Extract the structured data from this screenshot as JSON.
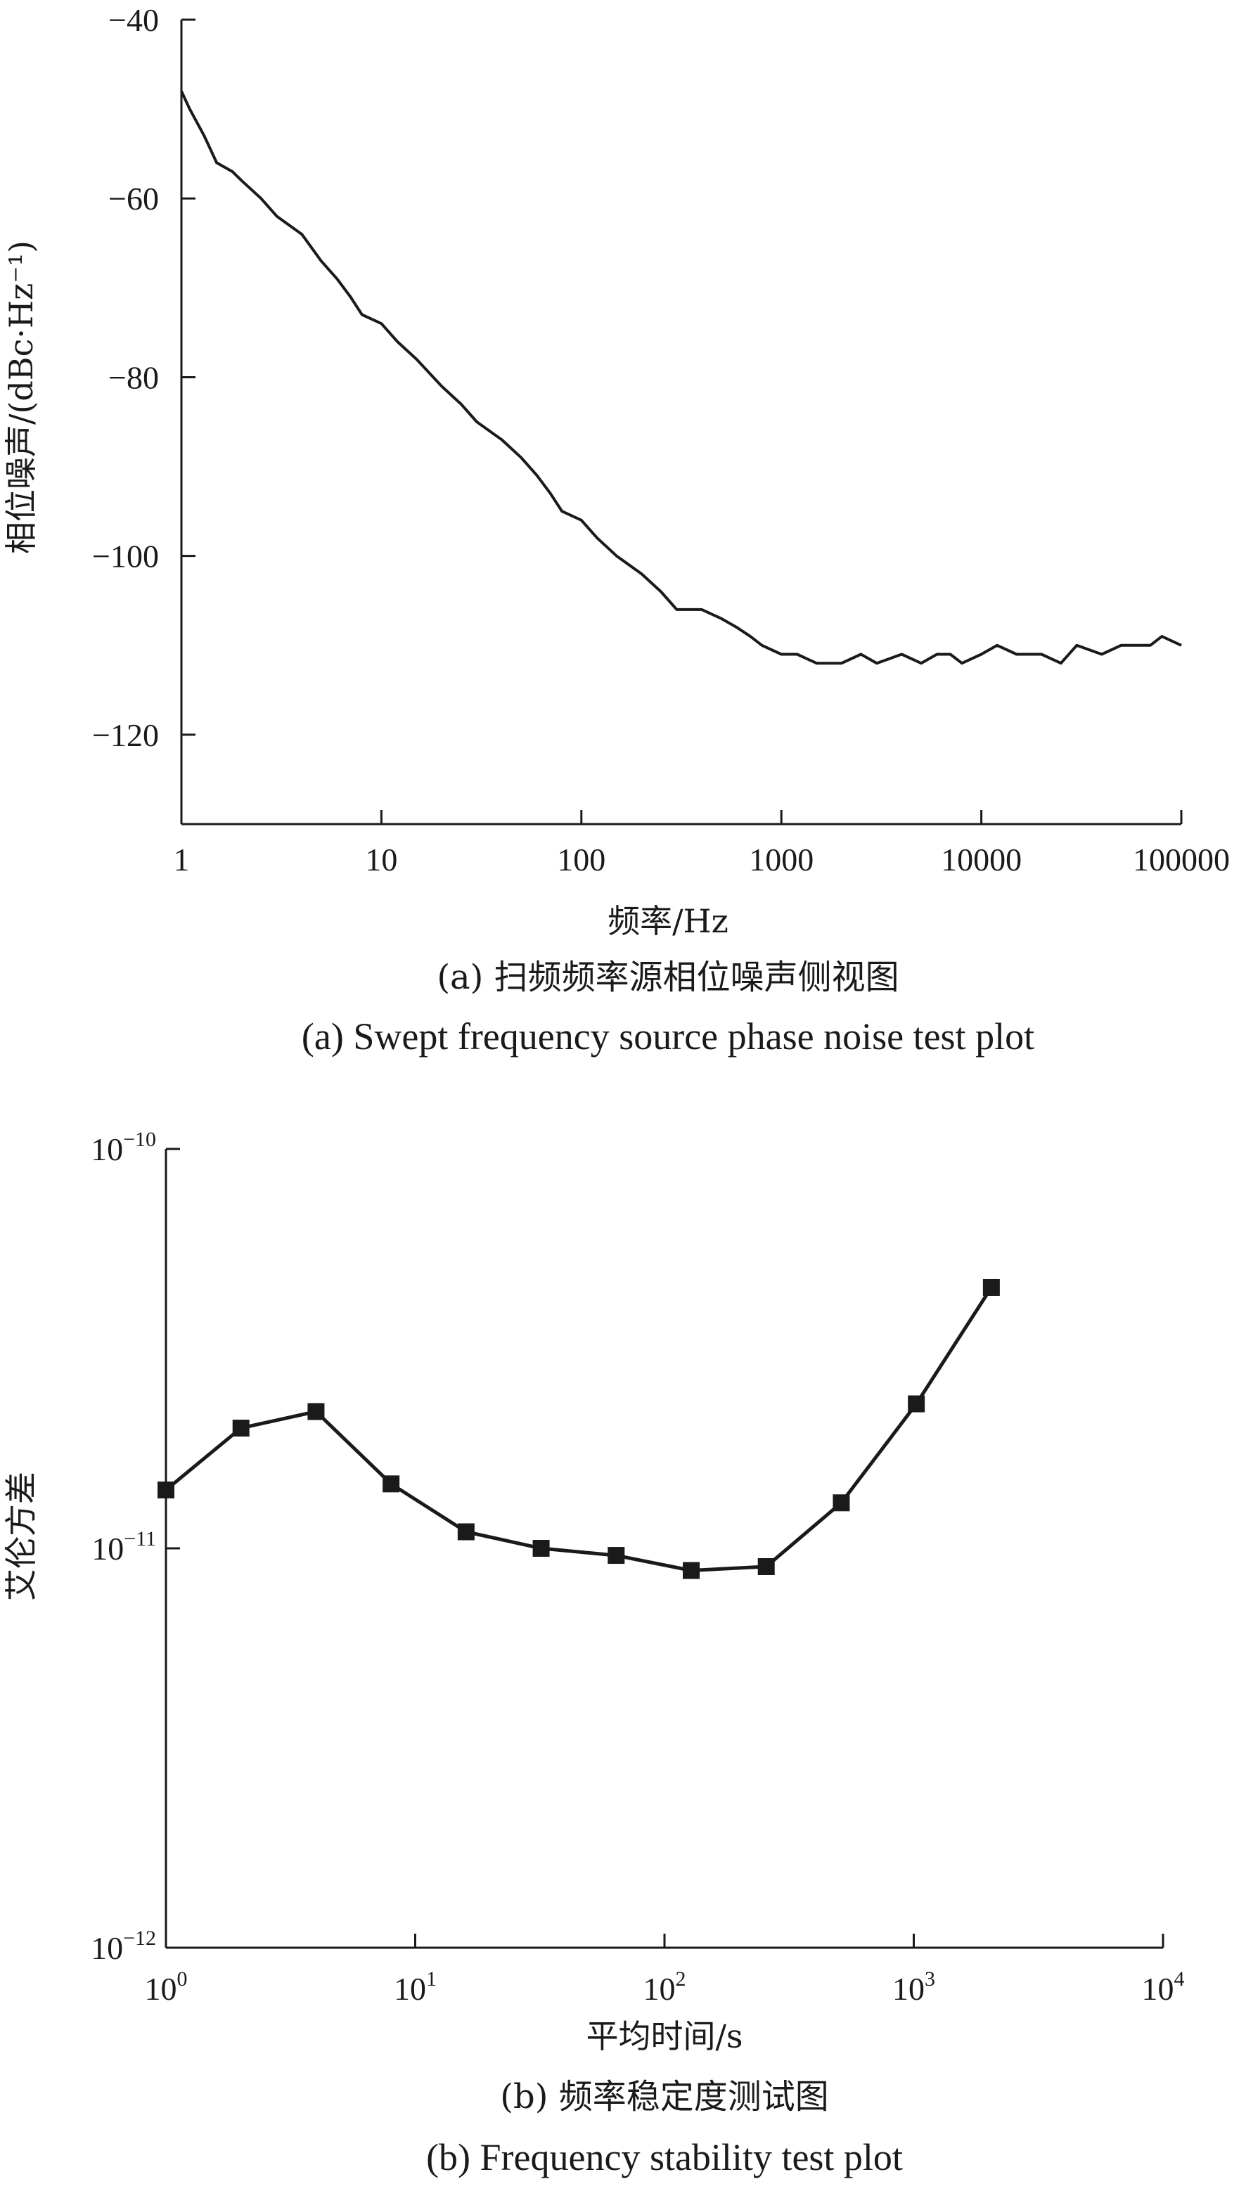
{
  "chart_data": [
    {
      "type": "line",
      "xlabel": "频率/Hz",
      "ylabel": "相位噪声/(dBc·Hz⁻¹)",
      "x_scale": "log",
      "xlim": [
        1,
        100000
      ],
      "ylim": [
        -130,
        -40
      ],
      "x_ticks": [
        1,
        10,
        100,
        1000,
        10000,
        100000
      ],
      "x_tick_labels": [
        "1",
        "10",
        "100",
        "1000",
        "10000",
        "100000"
      ],
      "y_ticks": [
        -40,
        -60,
        -80,
        -100,
        -120
      ],
      "y_tick_labels": [
        "−40",
        "−60",
        "−80",
        "−100",
        "−120"
      ],
      "grid": false,
      "line_color": "#1a1a1a",
      "series": [
        {
          "x": [
            1,
            1.1,
            1.3,
            1.5,
            1.8,
            2,
            2.5,
            3,
            4,
            5,
            6,
            7,
            8,
            10,
            12,
            15,
            20,
            25,
            30,
            40,
            50,
            60,
            70,
            80,
            100,
            120,
            150,
            200,
            250,
            300,
            400,
            500,
            600,
            700,
            800,
            1000,
            1200,
            1500,
            2000,
            2500,
            3000,
            4000,
            5000,
            6000,
            7000,
            8000,
            10000,
            12000,
            15000,
            20000,
            25000,
            30000,
            40000,
            50000,
            60000,
            70000,
            80000,
            100000
          ],
          "values": [
            -48,
            -50,
            -53,
            -56,
            -57,
            -58,
            -60,
            -62,
            -64,
            -67,
            -69,
            -71,
            -73,
            -74,
            -76,
            -78,
            -81,
            -83,
            -85,
            -87,
            -89,
            -91,
            -93,
            -95,
            -96,
            -98,
            -100,
            -102,
            -104,
            -106,
            -106,
            -107,
            -108,
            -109,
            -110,
            -111,
            -111,
            -112,
            -112,
            -111,
            -112,
            -111,
            -112,
            -111,
            -111,
            -112,
            -111,
            -110,
            -111,
            -111,
            -112,
            -110,
            -111,
            -110,
            -110,
            -110,
            -109,
            -110
          ]
        }
      ],
      "caption_cn": "(a) 扫频频率源相位噪声侧视图",
      "caption_en": "(a) Swept frequency source phase noise test plot"
    },
    {
      "type": "line",
      "xlabel": "平均时间/s",
      "ylabel": "艾伦方差",
      "x_scale": "log",
      "y_scale": "log",
      "xlim": [
        1,
        10000
      ],
      "ylim": [
        1e-12,
        1e-10
      ],
      "x_ticks": [
        1,
        10,
        100,
        1000,
        10000
      ],
      "x_tick_labels": [
        {
          "base": "10",
          "exp": "0"
        },
        {
          "base": "10",
          "exp": "1"
        },
        {
          "base": "10",
          "exp": "2"
        },
        {
          "base": "10",
          "exp": "3"
        },
        {
          "base": "10",
          "exp": "4"
        }
      ],
      "y_ticks": [
        1e-10,
        1e-11,
        1e-12
      ],
      "y_tick_labels": [
        {
          "base": "10",
          "exp": "−10"
        },
        {
          "base": "10",
          "exp": "−11"
        },
        {
          "base": "10",
          "exp": "−12"
        }
      ],
      "grid": false,
      "marker": "square",
      "line_color": "#1a1a1a",
      "series": [
        {
          "x": [
            1,
            2,
            4,
            8,
            16,
            32,
            64,
            128,
            256,
            512,
            1024,
            2048
          ],
          "values": [
            1.4e-11,
            2e-11,
            2.2e-11,
            1.45e-11,
            1.1e-11,
            1e-11,
            9.6e-12,
            8.8e-12,
            9e-12,
            1.3e-11,
            2.3e-11,
            4.5e-11
          ]
        }
      ],
      "caption_cn": "(b) 频率稳定度测试图",
      "caption_en": "(b) Frequency stability test plot"
    }
  ]
}
